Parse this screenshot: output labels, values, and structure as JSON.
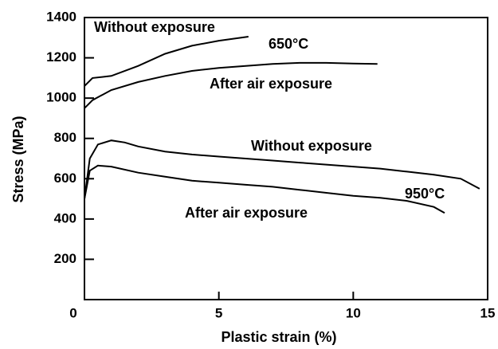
{
  "chart_data": {
    "type": "line",
    "xlabel": "Plastic strain (%)",
    "ylabel": "Stress (MPa)",
    "xlim": [
      0,
      15
    ],
    "ylim": [
      0,
      1400
    ],
    "xticks": [
      0,
      5,
      10,
      15
    ],
    "yticks": [
      200,
      400,
      600,
      800,
      1000,
      1200,
      1400
    ],
    "annotations": [
      "650°C",
      "950°C"
    ],
    "series": [
      {
        "name": "Without exposure",
        "color": "#000000",
        "x": [
          0,
          0.3,
          1,
          2,
          3,
          4,
          5,
          6.1
        ],
        "values": [
          1060,
          1100,
          1110,
          1160,
          1220,
          1260,
          1285,
          1305
        ]
      },
      {
        "name": "After air exposure",
        "color": "#000000",
        "x": [
          0,
          0.3,
          1,
          2,
          3,
          4,
          5,
          6,
          7,
          8,
          9,
          10,
          10.9
        ],
        "values": [
          950,
          990,
          1040,
          1080,
          1110,
          1135,
          1150,
          1160,
          1170,
          1175,
          1175,
          1172,
          1170
        ]
      },
      {
        "name": "Without exposure",
        "color": "#000000",
        "x": [
          0,
          0.2,
          0.5,
          1,
          1.5,
          2,
          3,
          4,
          5,
          6,
          7,
          8,
          9,
          10,
          11,
          12,
          13,
          14,
          14.7
        ],
        "values": [
          500,
          700,
          770,
          790,
          780,
          760,
          735,
          720,
          710,
          700,
          690,
          680,
          670,
          660,
          650,
          635,
          620,
          600,
          550
        ]
      },
      {
        "name": "After air exposure",
        "color": "#000000",
        "x": [
          0,
          0.2,
          0.5,
          1,
          2,
          3,
          4,
          5,
          6,
          7,
          8,
          9,
          10,
          11,
          12,
          13,
          13.4
        ],
        "values": [
          500,
          640,
          665,
          660,
          630,
          610,
          590,
          580,
          570,
          560,
          545,
          530,
          515,
          505,
          490,
          460,
          430
        ]
      }
    ]
  }
}
